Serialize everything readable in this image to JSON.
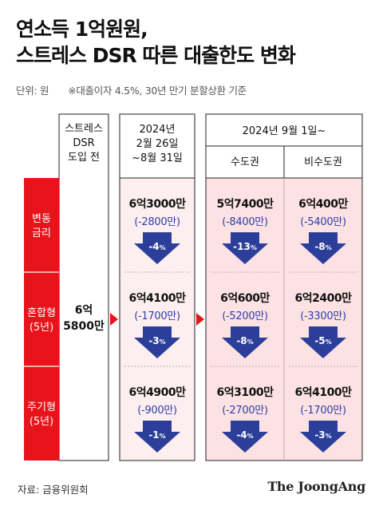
{
  "title": [
    "연소득 1억원원,",
    "스트레스 DSR 따른 대출한도 변화"
  ],
  "subtitle": {
    "unit": "단위: 원",
    "note": "※대출이자 4.5%, 30년 만기 분할상환 기준"
  },
  "footer": {
    "source": "자료: 금융위원회",
    "brand": "The JoongAng"
  },
  "colors": {
    "red": "#e8141b",
    "pink": "#fde2e4",
    "lightPink": "#fdeef0",
    "arrowBlue": "#2b3f9a",
    "textBlue": "#2b3fa6"
  },
  "chart_data": {
    "type": "table",
    "row_headers": [
      {
        "lines": [
          "변동",
          "금리"
        ]
      },
      {
        "lines": [
          "혼합형",
          "(5년)"
        ]
      },
      {
        "lines": [
          "주기형",
          "(5년)"
        ]
      }
    ],
    "baseline_header": [
      "스트레스",
      "DSR",
      "도입 전"
    ],
    "baseline_value": [
      "6억",
      "5800만"
    ],
    "baseline_won": 658000000,
    "phase1_header": [
      "2024년",
      "2월 26일",
      "~8월 31일"
    ],
    "phase2_header": "2024년 9월 1일~",
    "phase2_subheaders": [
      "수도권",
      "비수도권"
    ],
    "cells": [
      [
        {
          "amount": "6억3000만",
          "change": "(-2800만)",
          "pct": "-4",
          "pct_unit": "%"
        },
        {
          "amount": "5억7400만",
          "change": "(-8400만)",
          "pct": "-13",
          "pct_unit": "%"
        },
        {
          "amount": "6억400만",
          "change": "(-5400만)",
          "pct": "-8",
          "pct_unit": "%"
        }
      ],
      [
        {
          "amount": "6억4100만",
          "change": "(-1700만)",
          "pct": "-3",
          "pct_unit": "%"
        },
        {
          "amount": "6억600만",
          "change": "(-5200만)",
          "pct": "-8",
          "pct_unit": "%"
        },
        {
          "amount": "6억2400만",
          "change": "(-3300만)",
          "pct": "-5",
          "pct_unit": "%"
        }
      ],
      [
        {
          "amount": "6억4900만",
          "change": "(-900만)",
          "pct": "-1",
          "pct_unit": "%"
        },
        {
          "amount": "6억3100만",
          "change": "(-2700만)",
          "pct": "-4",
          "pct_unit": "%"
        },
        {
          "amount": "6억4100만",
          "change": "(-1700만)",
          "pct": "-3",
          "pct_unit": "%"
        }
      ]
    ]
  }
}
